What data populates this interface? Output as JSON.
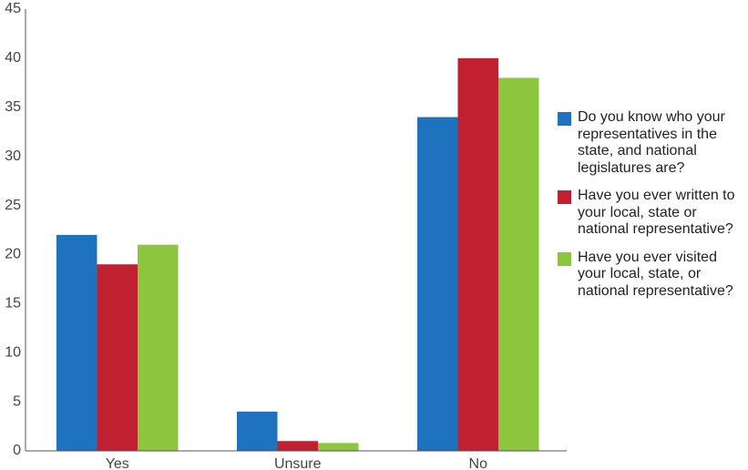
{
  "chart_data": {
    "type": "bar",
    "categories": [
      "Yes",
      "Unsure",
      "No"
    ],
    "series": [
      {
        "name": "Do you know who your representatives in the state, and national legislatures are?",
        "values": [
          22,
          4,
          34
        ],
        "color": "#1f73be"
      },
      {
        "name": "Have you ever written to your local, state or national representative?",
        "values": [
          19,
          1,
          40
        ],
        "color": "#c0202f"
      },
      {
        "name": "Have you ever visited your local, state, or national representative?",
        "values": [
          21,
          0.8,
          38
        ],
        "color": "#8cc63f"
      }
    ],
    "ylim": [
      0,
      45
    ],
    "yticks": [
      0,
      5,
      10,
      15,
      20,
      25,
      30,
      35,
      40,
      45
    ],
    "title": "",
    "xlabel": "",
    "ylabel": "",
    "grid": false,
    "legend_position": "right"
  }
}
